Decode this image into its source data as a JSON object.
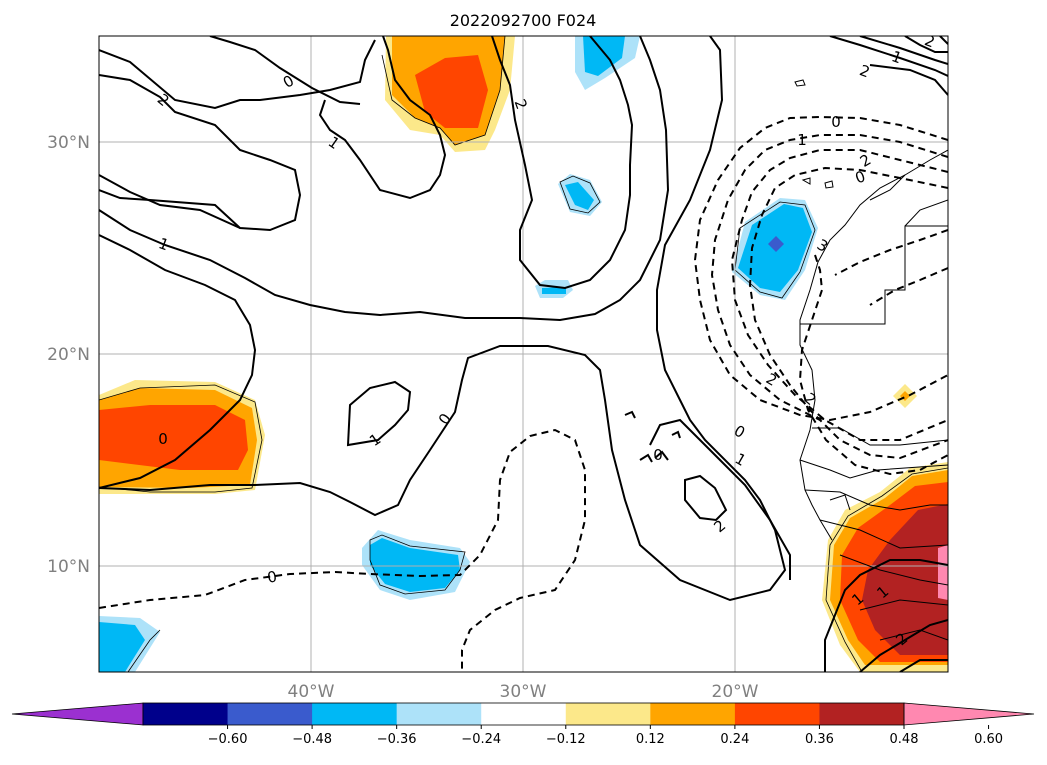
{
  "title": "2022092700 F024",
  "lat_labels": [
    "30°N",
    "20°N",
    "10°N"
  ],
  "lon_labels": [
    "40°W",
    "30°W",
    "20°W"
  ],
  "contour_labels": [
    "2",
    "0",
    "1",
    "2",
    "0",
    "1",
    "2",
    "0",
    "1",
    "1",
    "0",
    "0",
    "0",
    "1",
    "2",
    "2",
    "2",
    "2",
    "1",
    "0",
    "2",
    "1",
    "3",
    "1",
    "2",
    "0"
  ],
  "colorbar": {
    "tick_labels": [
      "−0.60",
      "−0.48",
      "−0.36",
      "−0.24",
      "−0.12",
      "0.12",
      "0.24",
      "0.36",
      "0.48",
      "0.60"
    ],
    "colors": [
      "#9b30d0",
      "#00008b",
      "#3a5bcd",
      "#00b8f5",
      "#ade2f9",
      "#ffffff",
      "#fce88a",
      "#ffa500",
      "#ff4500",
      "#b22222",
      "#ff88b0"
    ]
  },
  "colors": {
    "yellow": "#fce88a",
    "orange": "#ffa500",
    "red_orange": "#ff4500",
    "dark_red": "#b22222",
    "pink": "#ff88b0",
    "light_blue": "#ade2f9",
    "deep_sky": "#00b8f5",
    "royal_blue": "#3a5bcd",
    "grid": "#b0b0b0"
  }
}
